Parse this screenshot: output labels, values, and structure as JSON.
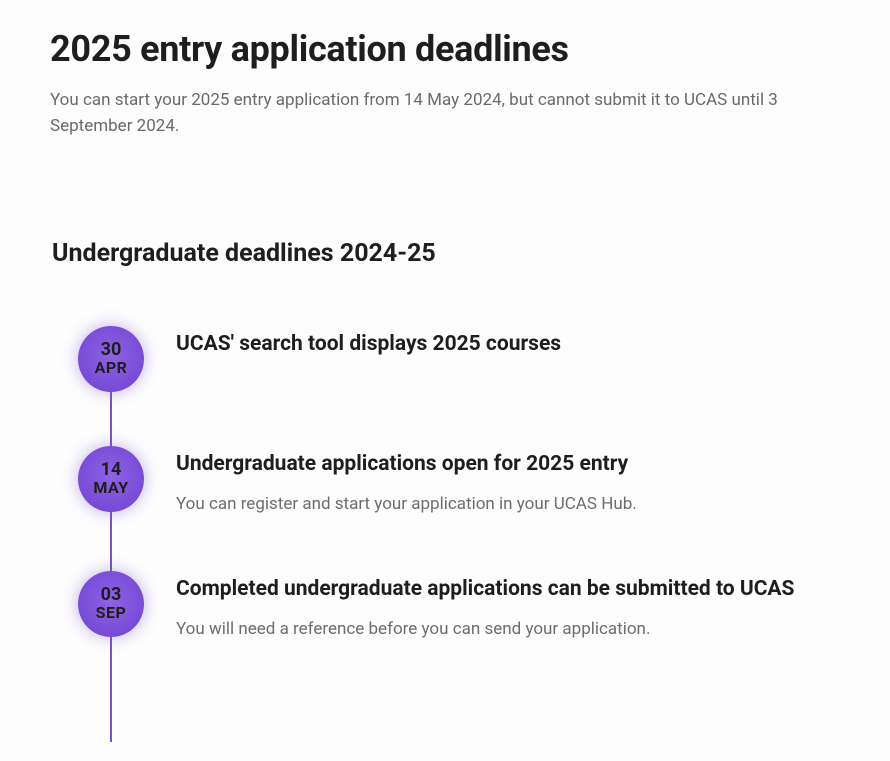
{
  "page": {
    "title": "2025 entry application deadlines",
    "intro": "You can start your 2025 entry application from 14 May 2024, but cannot submit it to UCAS until 3 September 2024.",
    "section_title": "Undergraduate deadlines 2024-25"
  },
  "style": {
    "bubble_gradient_start": "#8d62e3",
    "bubble_gradient_end": "#6f41d0",
    "bubble_glow": "rgba(122,79,211,0.45)",
    "line_color": "#7a4fd3",
    "text_muted": "#6d6d6d",
    "text_heading": "#1e1e1e",
    "background": "#fdfdfd"
  },
  "timeline": [
    {
      "day": "30",
      "month": "APR",
      "title": "UCAS' search tool displays 2025 courses",
      "desc": ""
    },
    {
      "day": "14",
      "month": "MAY",
      "title": "Undergraduate applications open for 2025 entry",
      "desc": "You can register and start your application in your UCAS Hub."
    },
    {
      "day": "03",
      "month": "SEP",
      "title": "Completed undergraduate applications can be submitted to UCAS",
      "desc": "You will need a reference before you can send your application."
    }
  ]
}
